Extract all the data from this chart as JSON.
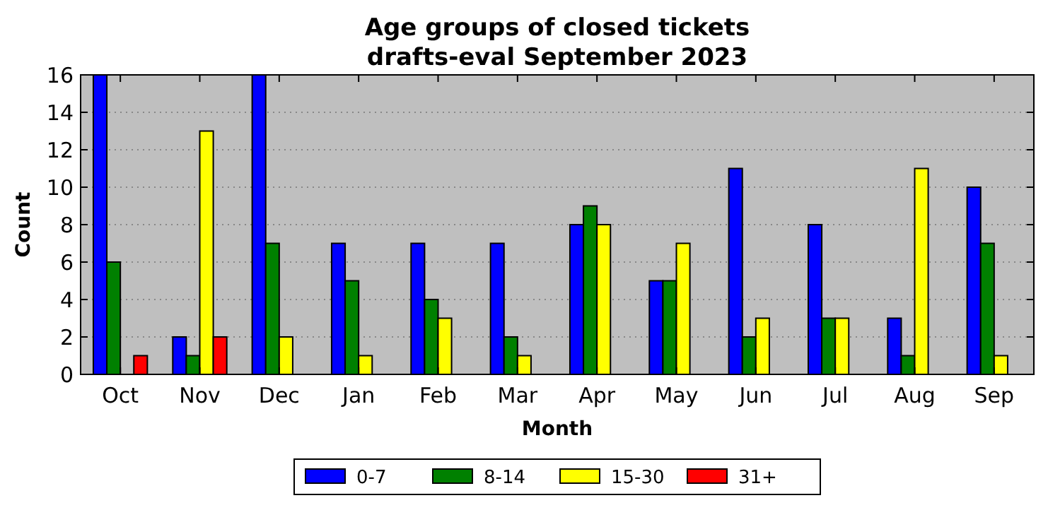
{
  "chart_data": {
    "type": "bar",
    "title": "Age groups of closed tickets\ndrafts-eval September 2023",
    "xlabel": "Month",
    "ylabel": "Count",
    "categories": [
      "Oct",
      "Nov",
      "Dec",
      "Jan",
      "Feb",
      "Mar",
      "Apr",
      "May",
      "Jun",
      "Jul",
      "Aug",
      "Sep"
    ],
    "series": [
      {
        "name": "0-7",
        "color": "#0000ff",
        "values": [
          16,
          2,
          16,
          7,
          7,
          7,
          8,
          5,
          11,
          8,
          3,
          10
        ]
      },
      {
        "name": "8-14",
        "color": "#008000",
        "values": [
          6,
          1,
          7,
          5,
          4,
          2,
          9,
          5,
          2,
          3,
          1,
          7
        ]
      },
      {
        "name": "15-30",
        "color": "#ffff00",
        "values": [
          0,
          13,
          2,
          1,
          3,
          1,
          8,
          7,
          3,
          3,
          11,
          1
        ]
      },
      {
        "name": "31+",
        "color": "#ff0000",
        "values": [
          1,
          2,
          0,
          0,
          0,
          0,
          0,
          0,
          0,
          0,
          0,
          0
        ]
      }
    ],
    "ylim": [
      0,
      16
    ],
    "yticks": [
      0,
      2,
      4,
      6,
      8,
      10,
      12,
      14,
      16
    ],
    "grid": "y",
    "legend": "bottom"
  }
}
